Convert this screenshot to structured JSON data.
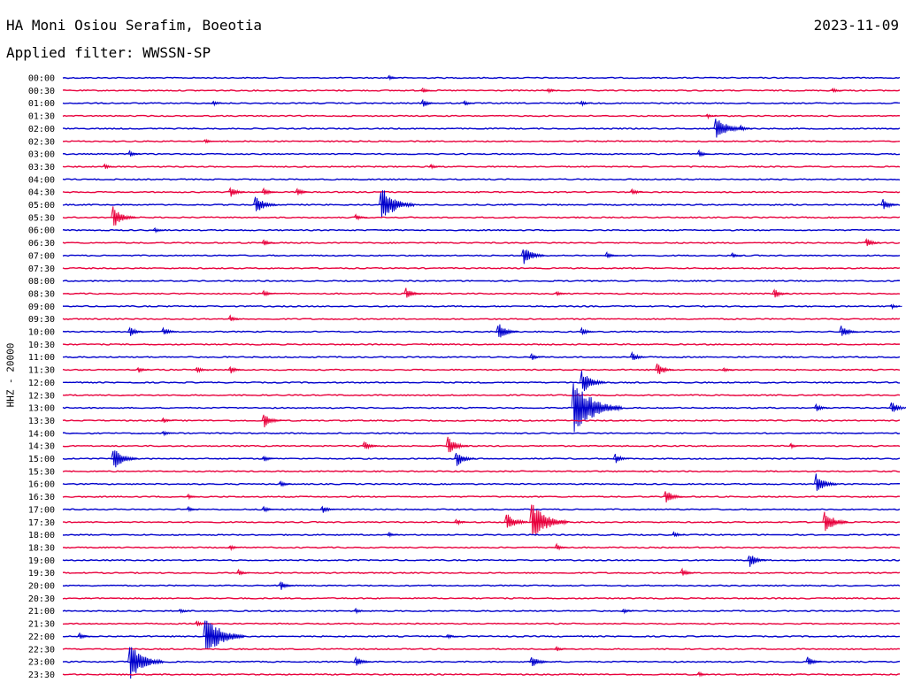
{
  "header": {
    "station": "HA Moni Osiou Serafim, Boeotia",
    "date": "2023-11-09",
    "filter": "Applied filter: WWSSN-SP"
  },
  "chart_data": {
    "type": "line",
    "title": "HA Moni Osiou Serafim, Boeotia",
    "ylabel": "HHZ - 20000",
    "colors": [
      "#0000cc",
      "#e8003c"
    ],
    "traces": [
      {
        "label": "00:00",
        "events": [
          {
            "t": 0.39,
            "a": 3
          }
        ]
      },
      {
        "label": "00:30",
        "events": [
          {
            "t": 0.43,
            "a": 3
          },
          {
            "t": 0.58,
            "a": 3
          },
          {
            "t": 0.92,
            "a": 3
          }
        ]
      },
      {
        "label": "01:00",
        "events": [
          {
            "t": 0.18,
            "a": 3
          },
          {
            "t": 0.43,
            "a": 5
          },
          {
            "t": 0.48,
            "a": 3
          },
          {
            "t": 0.62,
            "a": 3
          }
        ]
      },
      {
        "label": "01:30",
        "events": [
          {
            "t": 0.77,
            "a": 3
          }
        ]
      },
      {
        "label": "02:00",
        "events": [
          {
            "t": 0.78,
            "a": 16
          },
          {
            "t": 0.81,
            "a": 4
          }
        ]
      },
      {
        "label": "02:30",
        "events": [
          {
            "t": 0.17,
            "a": 3
          }
        ]
      },
      {
        "label": "03:00",
        "events": [
          {
            "t": 0.08,
            "a": 4
          },
          {
            "t": 0.76,
            "a": 4
          }
        ]
      },
      {
        "label": "03:30",
        "events": [
          {
            "t": 0.05,
            "a": 3
          },
          {
            "t": 0.44,
            "a": 3
          }
        ]
      },
      {
        "label": "04:00",
        "events": []
      },
      {
        "label": "04:30",
        "events": [
          {
            "t": 0.2,
            "a": 7
          },
          {
            "t": 0.24,
            "a": 5
          },
          {
            "t": 0.28,
            "a": 5
          },
          {
            "t": 0.68,
            "a": 4
          }
        ]
      },
      {
        "label": "05:00",
        "events": [
          {
            "t": 0.23,
            "a": 12
          },
          {
            "t": 0.38,
            "a": 22
          },
          {
            "t": 0.98,
            "a": 7
          }
        ]
      },
      {
        "label": "05:30",
        "events": [
          {
            "t": 0.06,
            "a": 13
          },
          {
            "t": 0.35,
            "a": 4
          }
        ]
      },
      {
        "label": "06:00",
        "events": [
          {
            "t": 0.11,
            "a": 3
          }
        ]
      },
      {
        "label": "06:30",
        "events": [
          {
            "t": 0.24,
            "a": 4
          },
          {
            "t": 0.96,
            "a": 6
          }
        ]
      },
      {
        "label": "07:00",
        "events": [
          {
            "t": 0.55,
            "a": 12
          },
          {
            "t": 0.65,
            "a": 4
          },
          {
            "t": 0.8,
            "a": 3
          }
        ]
      },
      {
        "label": "07:30",
        "events": []
      },
      {
        "label": "08:00",
        "events": []
      },
      {
        "label": "08:30",
        "events": [
          {
            "t": 0.24,
            "a": 4
          },
          {
            "t": 0.41,
            "a": 7
          },
          {
            "t": 0.59,
            "a": 3
          },
          {
            "t": 0.85,
            "a": 6
          }
        ]
      },
      {
        "label": "09:00",
        "events": [
          {
            "t": 0.99,
            "a": 3
          }
        ]
      },
      {
        "label": "09:30",
        "events": [
          {
            "t": 0.2,
            "a": 4
          }
        ]
      },
      {
        "label": "10:00",
        "events": [
          {
            "t": 0.08,
            "a": 6
          },
          {
            "t": 0.12,
            "a": 6
          },
          {
            "t": 0.52,
            "a": 11
          },
          {
            "t": 0.62,
            "a": 5
          },
          {
            "t": 0.93,
            "a": 8
          }
        ]
      },
      {
        "label": "10:30",
        "events": []
      },
      {
        "label": "11:00",
        "events": [
          {
            "t": 0.56,
            "a": 4
          },
          {
            "t": 0.68,
            "a": 6
          }
        ]
      },
      {
        "label": "11:30",
        "events": [
          {
            "t": 0.09,
            "a": 4
          },
          {
            "t": 0.16,
            "a": 4
          },
          {
            "t": 0.2,
            "a": 5
          },
          {
            "t": 0.71,
            "a": 8
          },
          {
            "t": 0.79,
            "a": 3
          }
        ]
      },
      {
        "label": "12:00",
        "events": [
          {
            "t": 0.62,
            "a": 14
          }
        ]
      },
      {
        "label": "12:30",
        "events": []
      },
      {
        "label": "13:00",
        "events": [
          {
            "t": 0.61,
            "a": 34
          },
          {
            "t": 0.9,
            "a": 5
          },
          {
            "t": 0.99,
            "a": 8
          }
        ]
      },
      {
        "label": "13:30",
        "events": [
          {
            "t": 0.12,
            "a": 3
          },
          {
            "t": 0.24,
            "a": 9
          }
        ]
      },
      {
        "label": "14:00",
        "events": [
          {
            "t": 0.12,
            "a": 3
          }
        ]
      },
      {
        "label": "14:30",
        "events": [
          {
            "t": 0.36,
            "a": 6
          },
          {
            "t": 0.46,
            "a": 11
          },
          {
            "t": 0.87,
            "a": 3
          }
        ]
      },
      {
        "label": "15:00",
        "events": [
          {
            "t": 0.06,
            "a": 14
          },
          {
            "t": 0.24,
            "a": 4
          },
          {
            "t": 0.47,
            "a": 10
          },
          {
            "t": 0.66,
            "a": 6
          }
        ]
      },
      {
        "label": "15:30",
        "events": []
      },
      {
        "label": "16:00",
        "events": [
          {
            "t": 0.26,
            "a": 4
          },
          {
            "t": 0.9,
            "a": 12
          }
        ]
      },
      {
        "label": "16:30",
        "events": [
          {
            "t": 0.15,
            "a": 3
          },
          {
            "t": 0.72,
            "a": 9
          }
        ]
      },
      {
        "label": "17:00",
        "events": [
          {
            "t": 0.15,
            "a": 3
          },
          {
            "t": 0.24,
            "a": 4
          },
          {
            "t": 0.31,
            "a": 5
          }
        ]
      },
      {
        "label": "17:30",
        "events": [
          {
            "t": 0.47,
            "a": 4
          },
          {
            "t": 0.53,
            "a": 12
          },
          {
            "t": 0.56,
            "a": 24
          },
          {
            "t": 0.91,
            "a": 14
          }
        ]
      },
      {
        "label": "18:00",
        "events": [
          {
            "t": 0.39,
            "a": 3
          },
          {
            "t": 0.73,
            "a": 4
          }
        ]
      },
      {
        "label": "18:30",
        "events": [
          {
            "t": 0.2,
            "a": 3
          },
          {
            "t": 0.59,
            "a": 4
          }
        ]
      },
      {
        "label": "19:00",
        "events": [
          {
            "t": 0.82,
            "a": 9
          }
        ]
      },
      {
        "label": "19:30",
        "events": [
          {
            "t": 0.21,
            "a": 4
          },
          {
            "t": 0.74,
            "a": 5
          }
        ]
      },
      {
        "label": "20:00",
        "events": [
          {
            "t": 0.26,
            "a": 6
          }
        ]
      },
      {
        "label": "20:30",
        "events": []
      },
      {
        "label": "21:00",
        "events": [
          {
            "t": 0.14,
            "a": 3
          },
          {
            "t": 0.35,
            "a": 3
          },
          {
            "t": 0.67,
            "a": 3
          }
        ]
      },
      {
        "label": "21:30",
        "events": [
          {
            "t": 0.16,
            "a": 4
          }
        ]
      },
      {
        "label": "22:00",
        "events": [
          {
            "t": 0.02,
            "a": 4
          },
          {
            "t": 0.17,
            "a": 26
          },
          {
            "t": 0.46,
            "a": 3
          }
        ]
      },
      {
        "label": "22:30",
        "events": [
          {
            "t": 0.59,
            "a": 3
          }
        ]
      },
      {
        "label": "23:00",
        "events": [
          {
            "t": 0.08,
            "a": 22
          },
          {
            "t": 0.35,
            "a": 7
          },
          {
            "t": 0.56,
            "a": 8
          },
          {
            "t": 0.89,
            "a": 6
          }
        ]
      },
      {
        "label": "23:30",
        "events": [
          {
            "t": 0.76,
            "a": 3
          }
        ]
      }
    ]
  }
}
